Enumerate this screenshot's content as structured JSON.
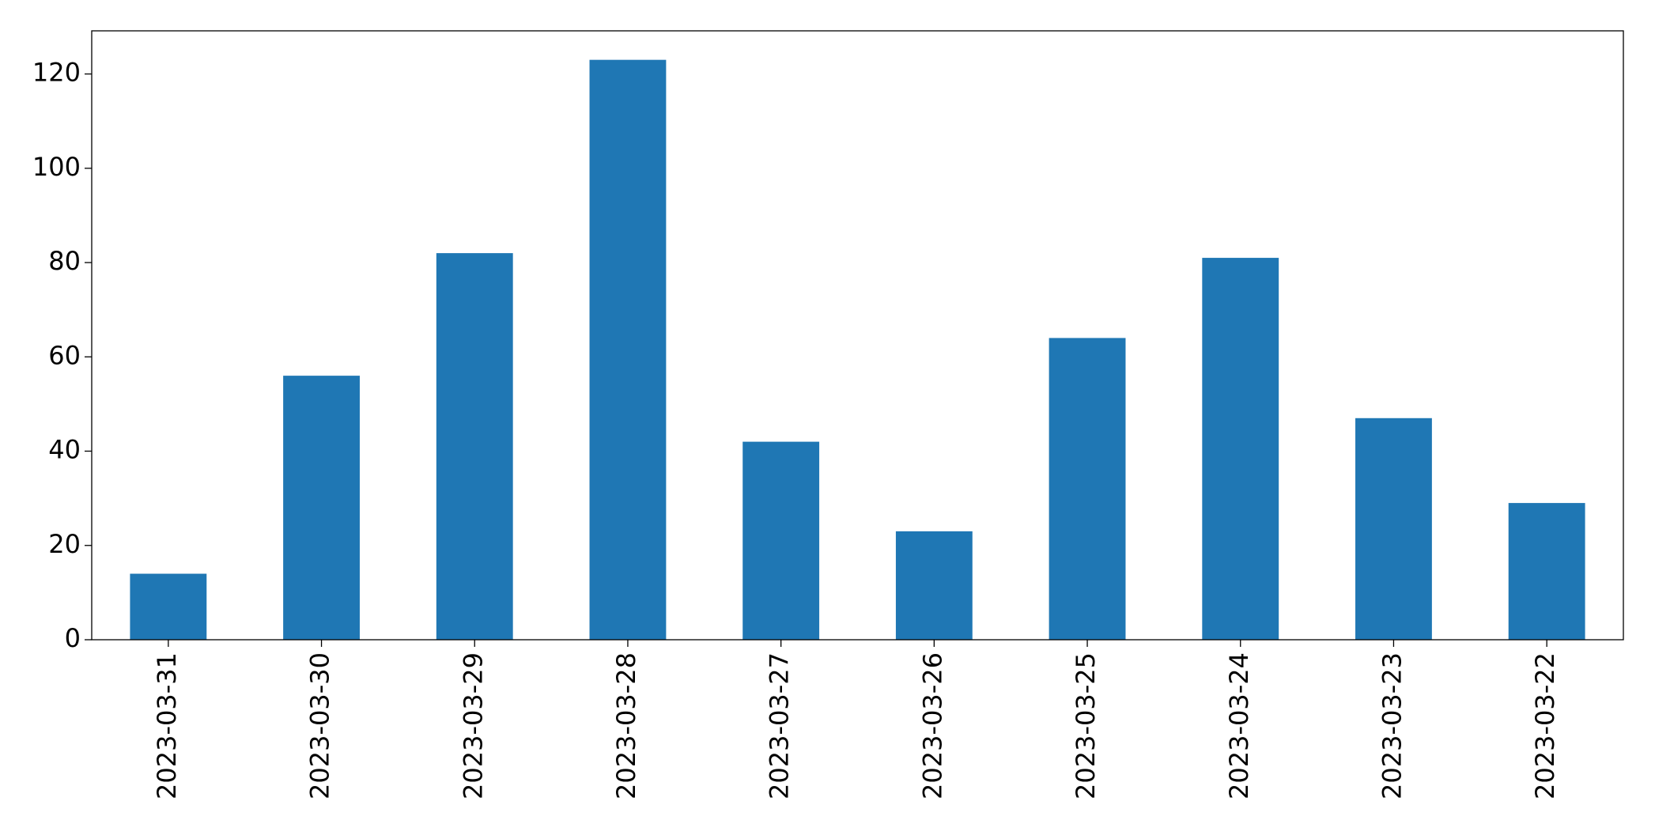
{
  "chart_data": {
    "type": "bar",
    "categories": [
      "2023-03-31",
      "2023-03-30",
      "2023-03-29",
      "2023-03-28",
      "2023-03-27",
      "2023-03-26",
      "2023-03-25",
      "2023-03-24",
      "2023-03-23",
      "2023-03-22"
    ],
    "values": [
      14,
      56,
      82,
      123,
      42,
      23,
      64,
      81,
      47,
      29
    ],
    "color": "#1f77b4",
    "ylim": [
      0,
      129.15
    ],
    "yticks": [
      0,
      20,
      40,
      60,
      80,
      100,
      120
    ],
    "grid": false
  }
}
